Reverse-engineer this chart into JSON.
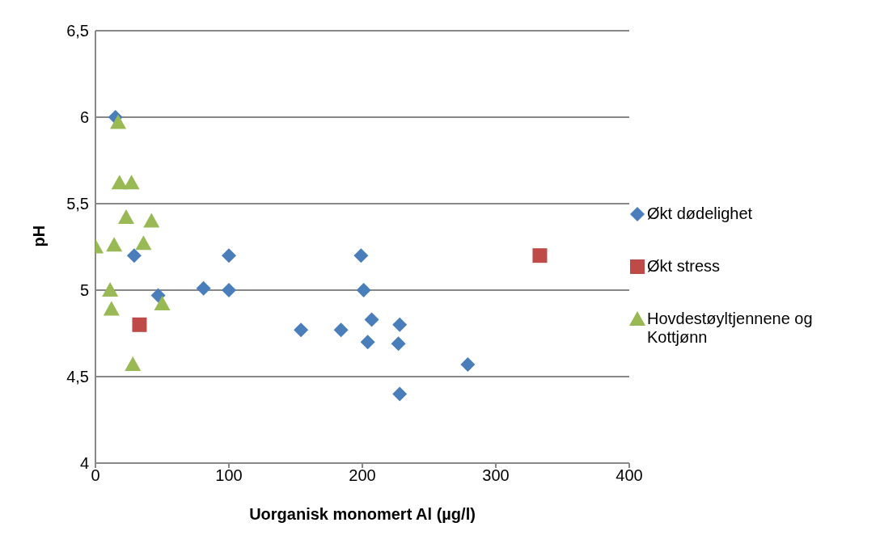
{
  "chart_data": {
    "type": "scatter",
    "xlabel": "Uorganisk monomert Al (µg/l)",
    "ylabel": "pH",
    "xlim": [
      0,
      400
    ],
    "xticks": [
      0,
      100,
      200,
      300,
      400
    ],
    "ylim": [
      4,
      6.5
    ],
    "yticks": [
      4,
      {
        "value": 4.5,
        "label": "4,5"
      },
      5,
      {
        "value": 5.5,
        "label": "5,5"
      },
      6,
      {
        "value": 6.5,
        "label": "6,5"
      }
    ],
    "grid": "y",
    "legend": "right",
    "series": [
      {
        "name": "Økt dødelighet",
        "color": "#4a7ebb",
        "marker": "diamond",
        "x": [
          15,
          29,
          47,
          81,
          100,
          100,
          154,
          184,
          199,
          201,
          207,
          204,
          228,
          227,
          228,
          279
        ],
        "values": [
          6.0,
          5.2,
          4.97,
          5.01,
          5.2,
          5.0,
          4.77,
          4.77,
          5.2,
          5.0,
          4.83,
          4.7,
          4.8,
          4.69,
          4.4,
          4.57
        ]
      },
      {
        "name": "Økt stress",
        "color": "#be4b48",
        "marker": "square",
        "x": [
          33,
          333
        ],
        "values": [
          4.8,
          5.2
        ]
      },
      {
        "name": "Hovdestøyltjennene og Kottjønn",
        "color": "#98b954",
        "marker": "triangle",
        "x": [
          17,
          18,
          27,
          23,
          42,
          0,
          14,
          36,
          11,
          12,
          50,
          28
        ],
        "values": [
          5.97,
          5.62,
          5.62,
          5.42,
          5.4,
          5.25,
          5.26,
          5.27,
          5.0,
          4.89,
          4.92,
          4.57
        ]
      }
    ]
  }
}
